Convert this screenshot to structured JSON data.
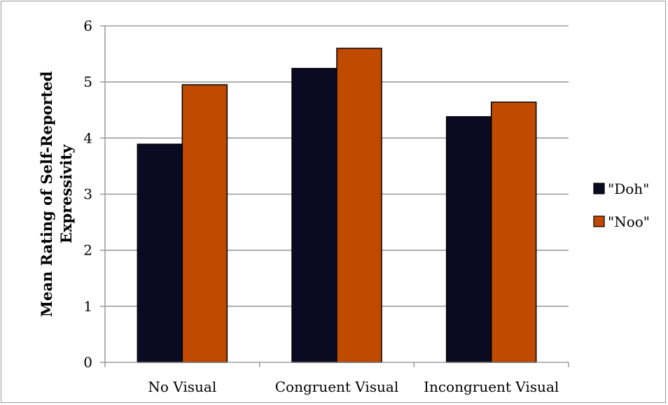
{
  "chart_data": {
    "type": "bar",
    "categories": [
      "No Visual",
      "Congruent Visual",
      "Incongruent Visual"
    ],
    "series": [
      {
        "name": "\"Doh\"",
        "values": [
          3.89,
          5.24,
          4.38
        ],
        "color": "#0a0a23"
      },
      {
        "name": "\"Noo\"",
        "values": [
          4.95,
          5.6,
          4.64
        ],
        "color": "#c04a00"
      }
    ],
    "ylabel": "Mean Rating of Self-Reported Expressivity",
    "ylabel_lines": [
      "Mean Rating of Self-Reported",
      "Expressivity"
    ],
    "ylim": [
      0,
      6
    ],
    "yticks": [
      "0",
      "1",
      "2",
      "3",
      "4",
      "5",
      "6"
    ],
    "grid": true,
    "legend_position": "right"
  }
}
